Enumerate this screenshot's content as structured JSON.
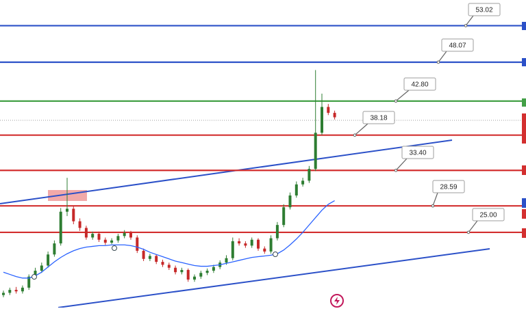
{
  "chart_data": {
    "type": "candlestick",
    "ylim": [
      14.8,
      56.5
    ],
    "up_color": "#2e7d32",
    "down_color": "#c62828",
    "open": [
      16.5,
      16.8,
      17.2,
      17.0,
      17.5,
      19.0,
      19.8,
      20.5,
      22.0,
      23.5,
      27.8,
      28.2,
      26.5,
      25.6,
      24.3,
      24.8,
      24.0,
      23.6,
      23.9,
      24.5,
      24.9,
      24.3,
      22.5,
      21.4,
      21.8,
      21.0,
      20.6,
      20.2,
      19.6,
      19.9,
      18.6,
      19.0,
      19.5,
      19.8,
      20.3,
      20.9,
      21.5,
      23.8,
      23.5,
      23.2,
      24.0,
      22.8,
      22.4,
      24.2,
      26.0,
      28.4,
      30.0,
      31.5,
      32.0,
      33.6,
      38.5,
      42.0,
      41.2
    ],
    "high": [
      17.1,
      17.5,
      17.6,
      17.8,
      19.3,
      20.2,
      20.9,
      22.4,
      23.9,
      28.3,
      32.4,
      28.6,
      26.9,
      25.9,
      25.1,
      25.1,
      24.3,
      24.2,
      24.8,
      25.3,
      25.2,
      24.6,
      22.8,
      22.1,
      22.0,
      21.3,
      20.9,
      20.5,
      20.2,
      20.1,
      19.3,
      19.8,
      20.1,
      20.6,
      21.2,
      21.9,
      24.3,
      24.2,
      23.8,
      24.3,
      24.2,
      23.1,
      24.6,
      26.4,
      28.8,
      30.4,
      31.9,
      32.4,
      34.0,
      47.0,
      43.8,
      42.4,
      41.5
    ],
    "low": [
      16.2,
      16.5,
      16.7,
      16.7,
      17.2,
      18.7,
      19.5,
      20.2,
      21.7,
      23.2,
      27.2,
      26.1,
      25.2,
      24.0,
      24.0,
      23.7,
      23.3,
      23.4,
      23.6,
      24.2,
      24.0,
      22.2,
      21.1,
      21.1,
      20.7,
      20.3,
      19.9,
      19.3,
      19.3,
      18.3,
      18.3,
      18.7,
      19.2,
      19.5,
      20.0,
      20.6,
      21.2,
      23.2,
      22.9,
      22.9,
      22.5,
      22.1,
      22.1,
      23.9,
      25.7,
      28.1,
      29.7,
      31.2,
      31.7,
      33.3,
      38.2,
      40.9,
      40.3
    ],
    "close": [
      16.8,
      17.2,
      17.0,
      17.5,
      19.0,
      19.8,
      20.5,
      22.0,
      23.5,
      27.8,
      28.2,
      26.5,
      25.6,
      24.3,
      24.8,
      24.0,
      23.6,
      23.9,
      24.5,
      24.9,
      24.3,
      22.5,
      21.4,
      21.8,
      21.0,
      20.6,
      20.2,
      19.6,
      19.9,
      18.6,
      19.0,
      19.5,
      19.8,
      20.3,
      20.9,
      21.5,
      23.8,
      23.5,
      23.2,
      24.0,
      22.8,
      22.4,
      24.2,
      26.0,
      28.4,
      30.0,
      31.5,
      32.0,
      33.6,
      38.5,
      42.0,
      41.2,
      40.6
    ],
    "moving_average": {
      "color": "#2962ff",
      "values": [
        19.6,
        19.3,
        19.0,
        18.8,
        18.8,
        19.1,
        19.6,
        20.3,
        21.0,
        21.6,
        22.1,
        22.5,
        22.8,
        23.0,
        23.1,
        23.2,
        23.2,
        23.3,
        23.3,
        23.3,
        23.2,
        23.0,
        22.7,
        22.3,
        22.0,
        21.7,
        21.4,
        21.1,
        20.9,
        20.7,
        20.5,
        20.4,
        20.4,
        20.5,
        20.6,
        20.8,
        21.0,
        21.2,
        21.4,
        21.6,
        21.7,
        21.8,
        21.9,
        22.1,
        22.6,
        23.3,
        24.1,
        25.0,
        26.0,
        27.0,
        28.0,
        28.8,
        29.3
      ]
    },
    "levels": {
      "values": [
        53.02,
        48.07,
        42.8,
        38.18,
        33.4,
        28.59,
        25.0
      ],
      "value_labels": [
        "53.02",
        "48.07",
        "42.80",
        "38.18",
        "33.40",
        "28.59",
        "25.00"
      ],
      "colors": [
        "#2b50c8",
        "#2b50c8",
        "#43a047",
        "#d32f2f",
        "#d32f2f",
        "#d32f2f",
        "#d32f2f"
      ]
    }
  }
}
